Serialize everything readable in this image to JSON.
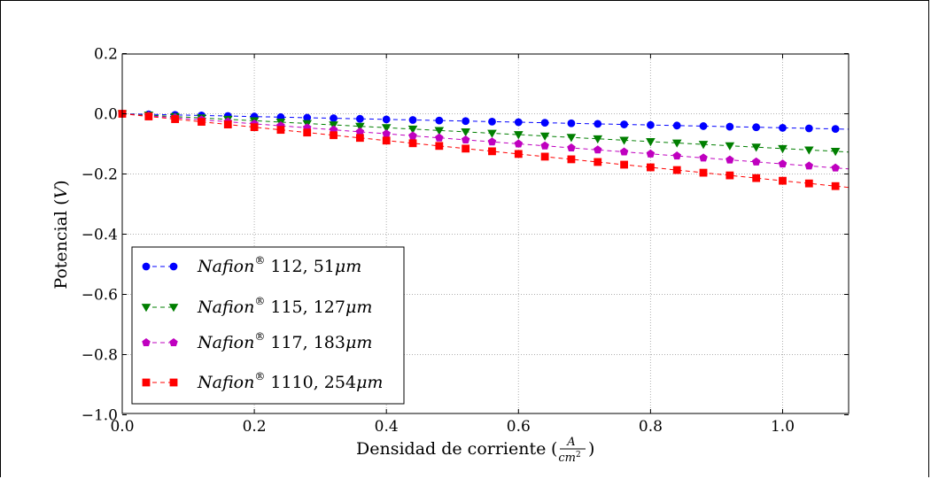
{
  "chart_data": {
    "type": "line",
    "title": "",
    "xlabel": "Densidad de corriente",
    "xlabel_unit": {
      "numerator": "A",
      "denominator": "cm",
      "exponent": "2"
    },
    "ylabel": "Potencial",
    "ylabel_unit": "V",
    "xlim": [
      0.0,
      1.1
    ],
    "ylim": [
      -1.0,
      0.2
    ],
    "xticks": [
      0.0,
      0.2,
      0.4,
      0.6,
      0.8,
      1.0
    ],
    "xtick_labels": [
      "0.0",
      "0.2",
      "0.4",
      "0.6",
      "0.8",
      "1.0"
    ],
    "yticks": [
      0.2,
      0.0,
      -0.2,
      -0.4,
      -0.6,
      -0.8,
      -1.0
    ],
    "ytick_labels": [
      "0.2",
      "0.0",
      "−0.2",
      "−0.4",
      "−0.6",
      "−0.8",
      "−1.0"
    ],
    "grid": true,
    "legend_position": "lower-left",
    "x": [
      0.0,
      0.04,
      0.08,
      0.12,
      0.16,
      0.2,
      0.24,
      0.28,
      0.32,
      0.36,
      0.4,
      0.44,
      0.48,
      0.52,
      0.56,
      0.6,
      0.64,
      0.68,
      0.72,
      0.76,
      0.8,
      0.84,
      0.88,
      0.92,
      0.96,
      1.0,
      1.04,
      1.08
    ],
    "series": [
      {
        "name": "Nafion",
        "sup": "®",
        "label_rest": " 112, 51",
        "unit": "μm",
        "color": "#0000ff",
        "marker": "circle",
        "slope": -0.0466
      },
      {
        "name": "Nafion",
        "sup": "®",
        "label_rest": " 115, 127",
        "unit": "μm",
        "color": "#007f00",
        "marker": "triangle-down",
        "slope": -0.1155
      },
      {
        "name": "Nafion",
        "sup": "®",
        "label_rest": " 117, 183",
        "unit": "μm",
        "color": "#bf00bf",
        "marker": "pentagon",
        "slope": -0.1665
      },
      {
        "name": "Nafion",
        "sup": "®",
        "label_rest": " 1110, 254",
        "unit": "μm",
        "color": "#ff0000",
        "marker": "square",
        "slope": -0.2225
      }
    ]
  }
}
